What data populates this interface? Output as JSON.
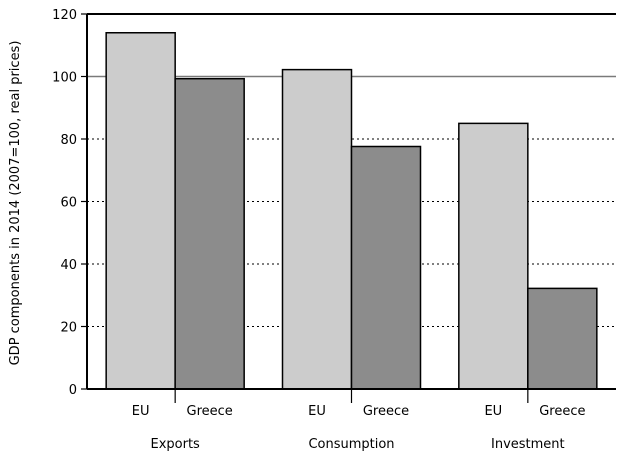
{
  "chart_data": {
    "type": "bar",
    "ylabel": "GDP components in 2014 (2007=100, real prices)",
    "ylim": [
      0,
      120
    ],
    "yticks": [
      0,
      20,
      40,
      60,
      80,
      100,
      120
    ],
    "reference_line": 100,
    "grid": "dotted horizontal",
    "groups": [
      {
        "label": "Exports",
        "bars": [
          {
            "label": "EU",
            "value": 114,
            "color": "#cccccc"
          },
          {
            "label": "Greece",
            "value": 99.3,
            "color": "#8c8c8c"
          }
        ]
      },
      {
        "label": "Consumption",
        "bars": [
          {
            "label": "EU",
            "value": 102.2,
            "color": "#cccccc"
          },
          {
            "label": "Greece",
            "value": 77.6,
            "color": "#8c8c8c"
          }
        ]
      },
      {
        "label": "Investment",
        "bars": [
          {
            "label": "EU",
            "value": 85,
            "color": "#cccccc"
          },
          {
            "label": "Greece",
            "value": 32.2,
            "color": "#8c8c8c"
          }
        ]
      }
    ]
  }
}
